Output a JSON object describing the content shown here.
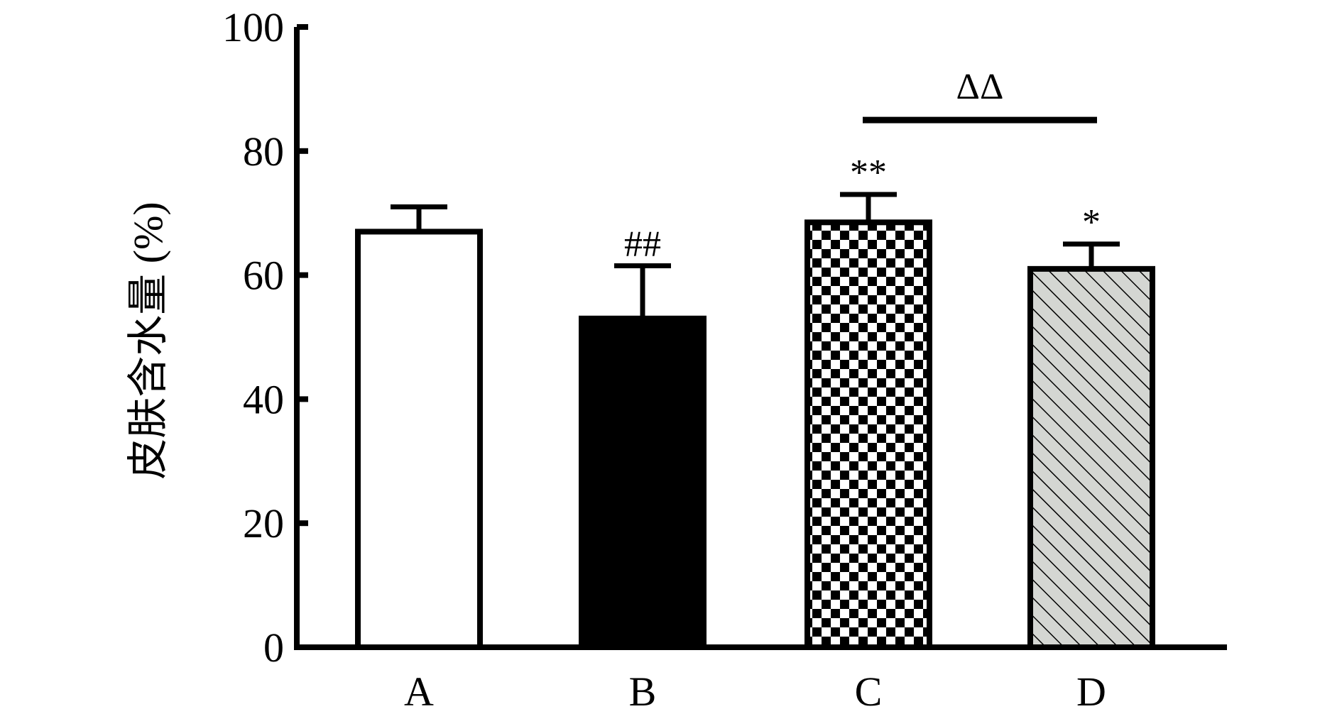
{
  "chart_data": {
    "type": "bar",
    "title": "",
    "xlabel": "",
    "ylabel": "皮肤含水量 (%)",
    "ylim": [
      0,
      100
    ],
    "yticks": [
      0,
      20,
      40,
      60,
      80,
      100
    ],
    "ytick_labels": [
      "0",
      "20",
      "40",
      "60",
      "80",
      "100"
    ],
    "grid": false,
    "legend": "none",
    "categories": [
      "A",
      "B",
      "C",
      "D"
    ],
    "values": [
      67,
      53,
      68.5,
      61
    ],
    "errors": [
      4,
      8.5,
      4.5,
      4
    ],
    "fills": [
      "white",
      "black",
      "checkerboard",
      "hatched-gray"
    ],
    "annotations": [
      "",
      "##",
      "**",
      "*"
    ],
    "comparison": {
      "from": "C",
      "to": "D",
      "label": "ΔΔ",
      "y": 85
    },
    "colors": {
      "axis": "#000000",
      "hatch_bg": "#d4d6d2"
    }
  }
}
